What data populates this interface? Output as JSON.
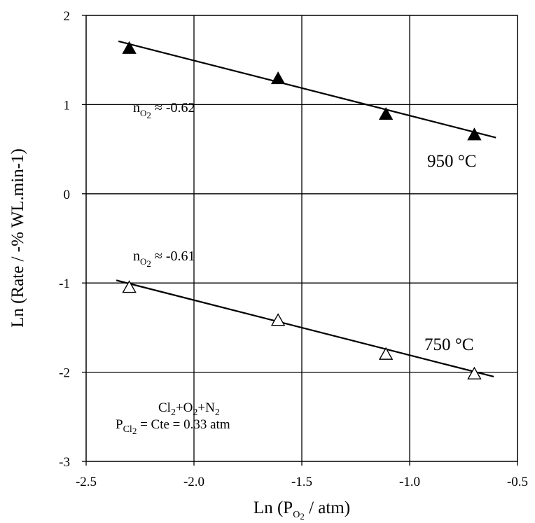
{
  "chart_data": {
    "type": "scatter",
    "xlabel": {
      "prefix": "Ln (",
      "main": "P",
      "sub": "O",
      "sub2": "2",
      "suffix": " / atm)"
    },
    "ylabel": "Ln (Rate / -% WL.min-1)",
    "xlim": [
      -2.5,
      -0.5
    ],
    "ylim": [
      -3,
      2
    ],
    "x_ticks": [
      -2.5,
      -2.0,
      -1.5,
      -1.0,
      -0.5
    ],
    "x_tick_labels": [
      "-2.5",
      "-2.0",
      "-1.5",
      "-1.0",
      "-0.5"
    ],
    "y_ticks": [
      -3,
      -2,
      -1,
      0,
      1,
      2
    ],
    "y_tick_labels": [
      "-3",
      "-2",
      "-1",
      "0",
      "1",
      "2"
    ],
    "grid": true,
    "series": [
      {
        "name": "950 °C",
        "marker": "filled-triangle",
        "x": [
          -2.3,
          -1.61,
          -1.11,
          -0.7
        ],
        "y": [
          1.63,
          1.29,
          0.89,
          0.66
        ],
        "fit": {
          "x": [
            -2.35,
            -0.6
          ],
          "y": [
            1.71,
            0.63
          ]
        },
        "slope_label": {
          "n": "n",
          "sub": "O",
          "sub2": "2",
          "value": " ≈ -0.62"
        }
      },
      {
        "name": "750 °C",
        "marker": "open-triangle",
        "x": [
          -2.3,
          -1.61,
          -1.11,
          -0.7
        ],
        "y": [
          -1.05,
          -1.42,
          -1.8,
          -2.02
        ],
        "fit": {
          "x": [
            -2.36,
            -0.61
          ],
          "y": [
            -0.97,
            -2.05
          ]
        },
        "slope_label": {
          "n": "n",
          "sub": "O",
          "sub2": "2",
          "value": " ≈ -0.61"
        }
      }
    ],
    "conditions": {
      "line1": {
        "a": "Cl",
        "a_sub": "2",
        "b": "+O",
        "b_sub": "2",
        "c": "+N",
        "c_sub": "2"
      },
      "line2": {
        "p": "P",
        "p_sub": "Cl",
        "p_sub2": "2",
        "rest": " = Cte = 0.33 atm"
      }
    }
  }
}
